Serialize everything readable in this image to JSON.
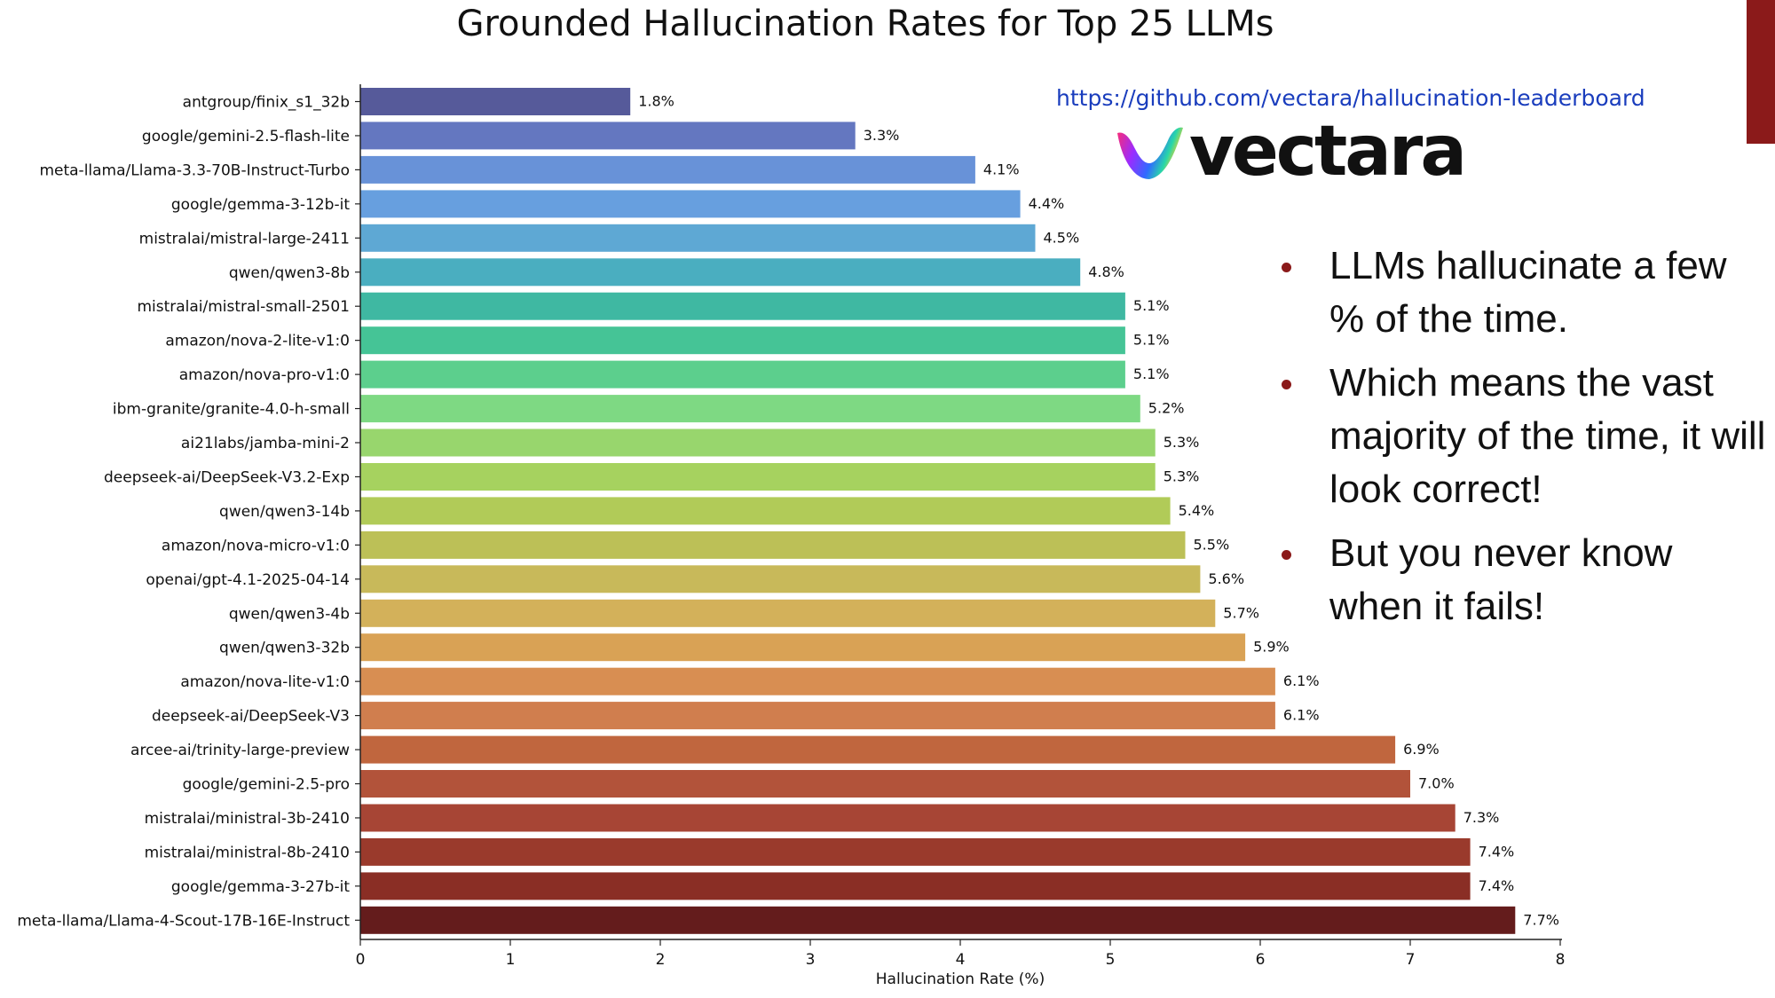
{
  "chart_data": {
    "type": "bar",
    "orientation": "horizontal",
    "title": "Grounded Hallucination Rates for Top 25 LLMs",
    "xlabel": "Hallucination Rate (%)",
    "ylabel": "",
    "xlim": [
      0,
      8
    ],
    "xticks": [
      "0",
      "1",
      "2",
      "3",
      "4",
      "5",
      "6",
      "7",
      "8"
    ],
    "value_suffix": "%",
    "categories": [
      "antgroup/finix_s1_32b",
      "google/gemini-2.5-flash-lite",
      "meta-llama/Llama-3.3-70B-Instruct-Turbo",
      "google/gemma-3-12b-it",
      "mistralai/mistral-large-2411",
      "qwen/qwen3-8b",
      "mistralai/mistral-small-2501",
      "amazon/nova-2-lite-v1:0",
      "amazon/nova-pro-v1:0",
      "ibm-granite/granite-4.0-h-small",
      "ai21labs/jamba-mini-2",
      "deepseek-ai/DeepSeek-V3.2-Exp",
      "qwen/qwen3-14b",
      "amazon/nova-micro-v1:0",
      "openai/gpt-4.1-2025-04-14",
      "qwen/qwen3-4b",
      "qwen/qwen3-32b",
      "amazon/nova-lite-v1:0",
      "deepseek-ai/DeepSeek-V3",
      "arcee-ai/trinity-large-preview",
      "google/gemini-2.5-pro",
      "mistralai/ministral-3b-2410",
      "mistralai/ministral-8b-2410",
      "google/gemma-3-27b-it",
      "meta-llama/Llama-4-Scout-17B-16E-Instruct"
    ],
    "values": [
      1.8,
      3.3,
      4.1,
      4.4,
      4.5,
      4.8,
      5.1,
      5.1,
      5.1,
      5.2,
      5.3,
      5.3,
      5.4,
      5.5,
      5.6,
      5.7,
      5.9,
      6.1,
      6.1,
      6.9,
      7.0,
      7.3,
      7.4,
      7.4,
      7.7
    ],
    "colors": [
      "#565a9a",
      "#6477c0",
      "#6892d8",
      "#679fdf",
      "#5ea8d4",
      "#4aaec0",
      "#3fb8a2",
      "#45c496",
      "#5ccf8d",
      "#7ed983",
      "#98d66d",
      "#a6d25f",
      "#b1cb58",
      "#bcc057",
      "#c8b95a",
      "#d3b15a",
      "#d9a255",
      "#d88e52",
      "#d07e4e",
      "#c0663e",
      "#b2533a",
      "#a74535",
      "#9a3a2c",
      "#8a2e25",
      "#641c1c"
    ]
  },
  "source_url": "https://github.com/vectara/hallucination-leaderboard",
  "logo": {
    "wordmark": "vectara",
    "icon": "vectara-v-logo-icon"
  },
  "bullets": [
    "LLMs hallucinate a few % of the time.",
    "Which means the vast majority of the time, it will look correct!",
    "But you never know when it fails!"
  ],
  "accent_color": "#8b1a1a"
}
